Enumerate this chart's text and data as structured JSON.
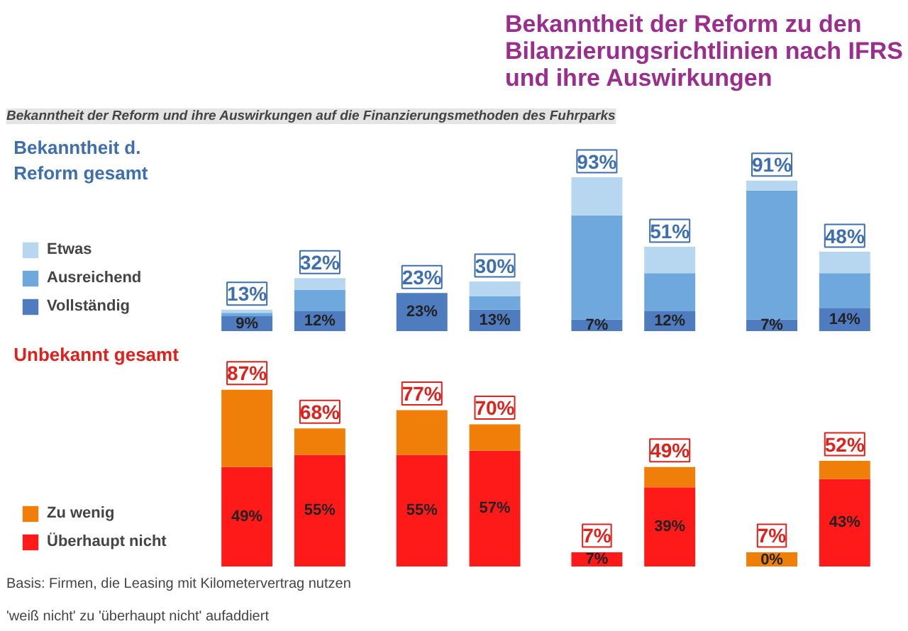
{
  "chart_data": [
    {
      "type": "bar",
      "title": "Bekanntheit der Reform zu den Bilanzierungsrichtlinien nach IFRS und ihre Auswirkungen",
      "subtitle": "Bekanntheit der Reform und ihre Auswirkungen auf die Finanzierungsmethoden des Fuhrparks",
      "categories": [
        null,
        null,
        null,
        null,
        null,
        null,
        null,
        null
      ],
      "stacked": true,
      "legend": "left",
      "annotations": [
        "Bekanntheit d. Reform gesamt"
      ],
      "series": [
        {
          "name": "Vollständig",
          "color": "#4f7bbf",
          "values": [
            9,
            12,
            23,
            13,
            7,
            12,
            7,
            14
          ],
          "value_labels": [
            "9%",
            "12%",
            "23%",
            "13%",
            "7%",
            "12%",
            "7%",
            "14%"
          ]
        },
        {
          "name": "Ausreichend",
          "color": "#6fa8dc",
          "values": [
            2,
            13,
            0,
            8,
            63,
            23,
            78,
            21
          ]
        },
        {
          "name": "Etwas",
          "color": "#b7d7f0",
          "values": [
            2,
            7,
            0,
            9,
            23,
            16,
            6,
            13
          ]
        }
      ],
      "totals": [
        "13%",
        "32%",
        "23%",
        "30%",
        "93%",
        "51%",
        "91%",
        "48%"
      ]
    },
    {
      "type": "bar",
      "categories": [
        null,
        null,
        null,
        null,
        null,
        null,
        null,
        null
      ],
      "stacked": true,
      "legend": "left",
      "annotations": [
        "Unbekannt gesamt",
        "Basis: Firmen, die Leasing mit Kilometervertrag nutzen",
        "'weiß nicht' zu 'überhaupt nicht' aufaddiert"
      ],
      "series": [
        {
          "name": "Überhaupt nicht",
          "color": "#ff1a1a",
          "values": [
            49,
            55,
            55,
            57,
            7,
            39,
            0,
            43
          ],
          "value_labels": [
            "49%",
            "55%",
            "55%",
            "57%",
            "7%",
            "39%",
            "0%",
            "43%"
          ]
        },
        {
          "name": "Zu wenig",
          "color": "#f07f09",
          "values": [
            38,
            13,
            22,
            13,
            0,
            10,
            7,
            9
          ]
        }
      ],
      "totals": [
        "87%",
        "68%",
        "77%",
        "70%",
        "7%",
        "49%",
        "7%",
        "52%"
      ]
    }
  ]
}
